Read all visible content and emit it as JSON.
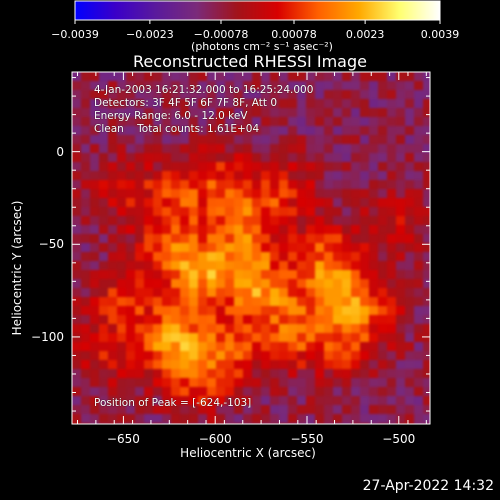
{
  "chart_data": {
    "type": "heatmap",
    "title": "Reconstructed RHESSI Image",
    "xlabel": "Heliocentric X (arcsec)",
    "ylabel": "Heliocentric Y (arcsec)",
    "xlim": [
      -678,
      -483
    ],
    "ylim": [
      -147,
      43
    ],
    "x_ticks": [
      -650,
      -600,
      -550,
      -500
    ],
    "y_ticks": [
      0,
      -50,
      -100
    ],
    "x_tick_labels": [
      "−650",
      "−600",
      "−550",
      "−500"
    ],
    "y_tick_labels": [
      "0",
      "−50",
      "−100"
    ],
    "colorbar": {
      "range": [
        -0.0039,
        0.0039
      ],
      "ticks": [
        -0.0039,
        -0.0023,
        -0.00078,
        0.00078,
        0.0023,
        0.0039
      ],
      "tick_labels": [
        "−0.0039",
        "−0.0023",
        "−0.00078",
        "0.00078",
        "0.0023",
        "0.0039"
      ],
      "units": "(photons cm⁻² s⁻¹ asec⁻²)",
      "colors": [
        "#0000ff",
        "#3a00c8",
        "#5a1a9c",
        "#7a2a7a",
        "#a2131a",
        "#d80000",
        "#ff6000",
        "#ffa800",
        "#ffff70",
        "#ffffff"
      ]
    },
    "annotations": [
      "4-Jan-2003 16:21:32.000 to 16:25:24.000",
      "Detectors: 3F 4F 5F 6F 7F 8F, Att 0",
      "Energy Range: 6.0 - 12.0 keV",
      "Clean    Total counts: 1.61E+04"
    ],
    "peak_label": "Position of Peak = [-624,-103]",
    "peak": [
      -624,
      -103
    ],
    "intensity_blobs": [
      {
        "x": -607,
        "y": -68,
        "value": 0.0032
      },
      {
        "x": -575,
        "y": -75,
        "value": 0.0034
      },
      {
        "x": -535,
        "y": -77,
        "value": 0.0031
      },
      {
        "x": -624,
        "y": -103,
        "value": 0.0039
      },
      {
        "x": -585,
        "y": -50,
        "value": 0.0025
      },
      {
        "x": -625,
        "y": -52,
        "value": 0.0022
      },
      {
        "x": -650,
        "y": -80,
        "value": 0.0018
      },
      {
        "x": -560,
        "y": -100,
        "value": 0.0024
      },
      {
        "x": -595,
        "y": -108,
        "value": 0.0024
      },
      {
        "x": -540,
        "y": -55,
        "value": 0.0021
      },
      {
        "x": -620,
        "y": -25,
        "value": 0.0016
      },
      {
        "x": -580,
        "y": -28,
        "value": 0.0014
      },
      {
        "x": -650,
        "y": -20,
        "value": 0.0012
      },
      {
        "x": -515,
        "y": -85,
        "value": 0.0015
      },
      {
        "x": -600,
        "y": -15,
        "value": 0.0012
      },
      {
        "x": -560,
        "y": -20,
        "value": 0.001
      },
      {
        "x": -530,
        "y": -105,
        "value": 0.0016
      },
      {
        "x": -610,
        "y": -125,
        "value": 0.0014
      },
      {
        "x": -660,
        "y": -110,
        "value": 0.0012
      },
      {
        "x": -500,
        "y": -40,
        "value": 0.0009
      }
    ],
    "background_level": -0.0009
  },
  "footer": {
    "date_stamp": "27-Apr-2022 14:32"
  }
}
